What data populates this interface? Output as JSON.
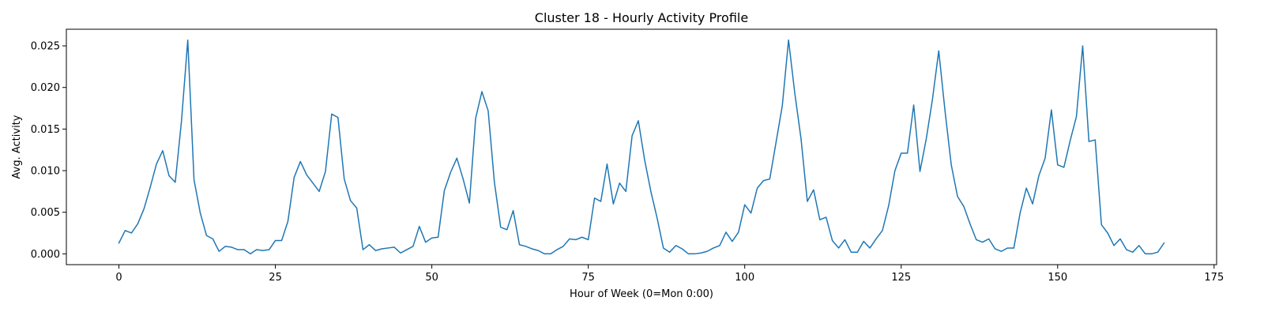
{
  "chart_data": {
    "type": "line",
    "title": "Cluster 18 - Hourly Activity Profile",
    "xlabel": "Hour of Week (0=Mon 0:00)",
    "ylabel": "Avg. Activity",
    "xlim": [
      -8.4,
      175.4
    ],
    "ylim": [
      -0.0013,
      0.027
    ],
    "xticks": [
      0,
      25,
      50,
      75,
      100,
      125,
      150,
      175
    ],
    "xtick_labels": [
      "0",
      "25",
      "50",
      "75",
      "100",
      "125",
      "150",
      "175"
    ],
    "yticks": [
      0.0,
      0.005,
      0.01,
      0.015,
      0.02,
      0.025
    ],
    "ytick_labels": [
      "0.000",
      "0.005",
      "0.010",
      "0.015",
      "0.020",
      "0.025"
    ],
    "grid": false,
    "series": [
      {
        "color": "#1f77b4",
        "x": [
          0,
          1,
          2,
          3,
          4,
          5,
          6,
          7,
          8,
          9,
          10,
          11,
          12,
          13,
          14,
          15,
          16,
          17,
          18,
          19,
          20,
          21,
          22,
          23,
          24,
          25,
          26,
          27,
          28,
          29,
          30,
          31,
          32,
          33,
          34,
          35,
          36,
          37,
          38,
          39,
          40,
          41,
          42,
          43,
          44,
          45,
          46,
          47,
          48,
          49,
          50,
          51,
          52,
          53,
          54,
          55,
          56,
          57,
          58,
          59,
          60,
          61,
          62,
          63,
          64,
          65,
          66,
          67,
          68,
          69,
          70,
          71,
          72,
          73,
          74,
          75,
          76,
          77,
          78,
          79,
          80,
          81,
          82,
          83,
          84,
          85,
          86,
          87,
          88,
          89,
          90,
          91,
          92,
          93,
          94,
          95,
          96,
          97,
          98,
          99,
          100,
          101,
          102,
          103,
          104,
          105,
          106,
          107,
          108,
          109,
          110,
          111,
          112,
          113,
          114,
          115,
          116,
          117,
          118,
          119,
          120,
          121,
          122,
          123,
          124,
          125,
          126,
          127,
          128,
          129,
          130,
          131,
          132,
          133,
          134,
          135,
          136,
          137,
          138,
          139,
          140,
          141,
          142,
          143,
          144,
          145,
          146,
          147,
          148,
          149,
          150,
          151,
          152,
          153,
          154,
          155,
          156,
          157,
          158,
          159,
          160,
          161,
          162,
          163,
          164,
          165,
          166,
          167
        ],
        "y": [
          0.0013,
          0.0028,
          0.0025,
          0.0036,
          0.0054,
          0.008,
          0.0108,
          0.0124,
          0.0094,
          0.0086,
          0.016,
          0.0257,
          0.0089,
          0.0049,
          0.0022,
          0.0018,
          0.0003,
          0.0009,
          0.0008,
          0.0005,
          0.0005,
          0.0,
          0.0005,
          0.0004,
          0.0005,
          0.0016,
          0.0016,
          0.0039,
          0.0092,
          0.0111,
          0.0095,
          0.0085,
          0.0075,
          0.0099,
          0.0168,
          0.0164,
          0.009,
          0.0064,
          0.0055,
          0.0005,
          0.0011,
          0.0004,
          0.0006,
          0.0007,
          0.0008,
          0.0001,
          0.0005,
          0.0009,
          0.0033,
          0.0014,
          0.0019,
          0.002,
          0.0076,
          0.0098,
          0.0115,
          0.009,
          0.0061,
          0.0163,
          0.0195,
          0.0172,
          0.0086,
          0.0032,
          0.0029,
          0.0052,
          0.0011,
          0.0009,
          0.0006,
          0.0004,
          0.0,
          0.0,
          0.0005,
          0.0009,
          0.0018,
          0.0017,
          0.002,
          0.0017,
          0.0067,
          0.0063,
          0.0108,
          0.006,
          0.0085,
          0.0075,
          0.0142,
          0.016,
          0.0113,
          0.0075,
          0.0043,
          0.0007,
          0.0002,
          0.001,
          0.0006,
          0.0,
          0.0,
          0.0001,
          0.0003,
          0.0007,
          0.001,
          0.0026,
          0.0015,
          0.0026,
          0.0059,
          0.0049,
          0.0079,
          0.0088,
          0.009,
          0.0134,
          0.0178,
          0.0257,
          0.0193,
          0.0138,
          0.0063,
          0.0077,
          0.0041,
          0.0044,
          0.0016,
          0.0007,
          0.0017,
          0.0002,
          0.0002,
          0.0015,
          0.0007,
          0.0018,
          0.0028,
          0.0058,
          0.01,
          0.0121,
          0.0121,
          0.0179,
          0.0099,
          0.0138,
          0.0186,
          0.0244,
          0.0172,
          0.0107,
          0.0069,
          0.0057,
          0.0036,
          0.0017,
          0.0014,
          0.0018,
          0.0006,
          0.0003,
          0.0007,
          0.0007,
          0.0049,
          0.0079,
          0.006,
          0.0094,
          0.0115,
          0.0173,
          0.0107,
          0.0104,
          0.0136,
          0.0165,
          0.025,
          0.0135,
          0.0137,
          0.0035,
          0.0025,
          0.001,
          0.0018,
          0.0005,
          0.0002,
          0.001,
          0.0,
          0.0,
          0.0002,
          0.0013
        ]
      }
    ]
  }
}
